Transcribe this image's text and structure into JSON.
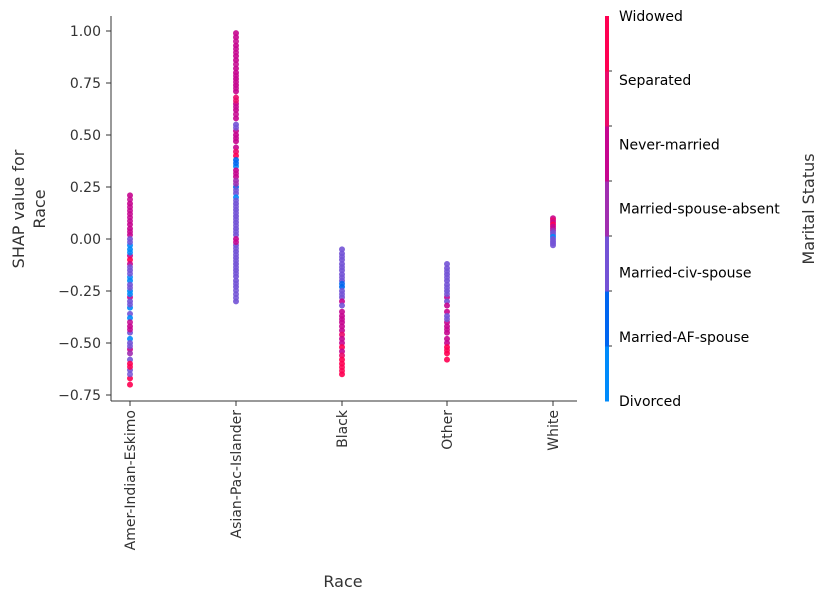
{
  "chart_data": {
    "type": "scatter",
    "xlabel": "Race",
    "ylabel_lines": [
      "SHAP value for",
      "Race"
    ],
    "categories": [
      "Amer-Indian-Eskimo",
      "Asian-Pac-Islander",
      "Black",
      "Other",
      "White"
    ],
    "ylim": [
      -0.78,
      1.06
    ],
    "yticks": [
      1.0,
      0.75,
      0.5,
      0.25,
      0.0,
      -0.25,
      -0.5,
      -0.75
    ],
    "ytick_labels": [
      "1.00",
      "0.75",
      "0.50",
      "0.25",
      "0.00",
      "−0.25",
      "−0.50",
      "−0.75"
    ],
    "grid": false,
    "colorbar": {
      "title": "Marital Status",
      "labels": [
        "Divorced",
        "Married-AF-spouse",
        "Married-civ-spouse",
        "Married-spouse-absent",
        "Never-married",
        "Separated",
        "Widowed"
      ],
      "colors": [
        "#008bfb",
        "#0066f0",
        "#7353d6",
        "#a12eb0",
        "#c6068f",
        "#ea0a6a",
        "#ff0052"
      ]
    },
    "point_format": [
      "shap_value",
      "marital_status_index"
    ],
    "points": {
      "Amer-Indian-Eskimo": [
        [
          0.21,
          4
        ],
        [
          0.17,
          4
        ],
        [
          0.07,
          4
        ],
        [
          0.05,
          4
        ],
        [
          0.02,
          4
        ],
        [
          0.0,
          2
        ],
        [
          -0.03,
          0
        ],
        [
          -0.05,
          0
        ],
        [
          -0.08,
          4
        ],
        [
          -0.1,
          6
        ],
        [
          -0.12,
          4
        ],
        [
          -0.15,
          2
        ],
        [
          -0.2,
          0
        ],
        [
          -0.22,
          2
        ],
        [
          -0.25,
          0
        ],
        [
          -0.28,
          4
        ],
        [
          -0.3,
          2
        ],
        [
          -0.33,
          0
        ],
        [
          -0.36,
          2
        ],
        [
          -0.38,
          0
        ],
        [
          -0.42,
          4
        ],
        [
          -0.45,
          2
        ],
        [
          -0.48,
          0
        ],
        [
          -0.5,
          2
        ],
        [
          -0.53,
          4
        ],
        [
          -0.55,
          3
        ],
        [
          -0.58,
          2
        ],
        [
          -0.6,
          6
        ],
        [
          -0.63,
          2
        ],
        [
          -0.67,
          6
        ],
        [
          -0.7,
          6
        ]
      ],
      "Asian-Pac-Islander": [
        [
          0.99,
          4
        ],
        [
          0.97,
          4
        ],
        [
          0.93,
          4
        ],
        [
          0.88,
          4
        ],
        [
          0.86,
          4
        ],
        [
          0.82,
          4
        ],
        [
          0.8,
          4
        ],
        [
          0.77,
          4
        ],
        [
          0.74,
          4
        ],
        [
          0.71,
          4
        ],
        [
          0.68,
          5
        ],
        [
          0.65,
          4
        ],
        [
          0.62,
          4
        ],
        [
          0.58,
          4
        ],
        [
          0.55,
          2
        ],
        [
          0.52,
          4
        ],
        [
          0.5,
          4
        ],
        [
          0.47,
          4
        ],
        [
          0.44,
          4
        ],
        [
          0.42,
          5
        ],
        [
          0.4,
          6
        ],
        [
          0.38,
          1
        ],
        [
          0.35,
          0
        ],
        [
          0.33,
          4
        ],
        [
          0.3,
          4
        ],
        [
          0.28,
          3
        ],
        [
          0.25,
          1
        ],
        [
          0.22,
          2
        ],
        [
          0.2,
          0
        ],
        [
          0.17,
          2
        ],
        [
          0.14,
          2
        ],
        [
          0.11,
          2
        ],
        [
          0.08,
          2
        ],
        [
          0.05,
          2
        ],
        [
          0.02,
          2
        ],
        [
          0.0,
          4
        ],
        [
          -0.03,
          2
        ],
        [
          -0.06,
          2
        ],
        [
          -0.09,
          2
        ],
        [
          -0.12,
          2
        ],
        [
          -0.15,
          2
        ],
        [
          -0.18,
          2
        ],
        [
          -0.2,
          2
        ],
        [
          -0.23,
          2
        ],
        [
          -0.3,
          2
        ]
      ],
      "Black": [
        [
          -0.05,
          2
        ],
        [
          -0.07,
          2
        ],
        [
          -0.1,
          2
        ],
        [
          -0.12,
          2
        ],
        [
          -0.15,
          2
        ],
        [
          -0.17,
          2
        ],
        [
          -0.2,
          2
        ],
        [
          -0.23,
          1
        ],
        [
          -0.25,
          2
        ],
        [
          -0.28,
          2
        ],
        [
          -0.3,
          4
        ],
        [
          -0.32,
          2
        ],
        [
          -0.35,
          4
        ],
        [
          -0.37,
          4
        ],
        [
          -0.4,
          4
        ],
        [
          -0.42,
          4
        ],
        [
          -0.44,
          4
        ],
        [
          -0.46,
          5
        ],
        [
          -0.48,
          4
        ],
        [
          -0.5,
          4
        ],
        [
          -0.52,
          6
        ],
        [
          -0.54,
          4
        ],
        [
          -0.56,
          5
        ],
        [
          -0.58,
          6
        ],
        [
          -0.6,
          6
        ],
        [
          -0.65,
          6
        ]
      ],
      "Other": [
        [
          -0.12,
          2
        ],
        [
          -0.14,
          2
        ],
        [
          -0.17,
          2
        ],
        [
          -0.2,
          2
        ],
        [
          -0.22,
          2
        ],
        [
          -0.25,
          2
        ],
        [
          -0.28,
          4
        ],
        [
          -0.3,
          2
        ],
        [
          -0.32,
          4
        ],
        [
          -0.35,
          4
        ],
        [
          -0.37,
          2
        ],
        [
          -0.4,
          4
        ],
        [
          -0.42,
          4
        ],
        [
          -0.45,
          4
        ],
        [
          -0.48,
          4
        ],
        [
          -0.5,
          4
        ],
        [
          -0.52,
          6
        ],
        [
          -0.55,
          6
        ],
        [
          -0.58,
          6
        ]
      ],
      "White": [
        [
          0.1,
          4
        ],
        [
          0.09,
          5
        ],
        [
          0.08,
          4
        ],
        [
          0.07,
          6
        ],
        [
          0.06,
          4
        ],
        [
          0.05,
          4
        ],
        [
          0.04,
          3
        ],
        [
          0.03,
          2
        ],
        [
          0.02,
          2
        ],
        [
          0.01,
          0
        ],
        [
          0.0,
          2
        ],
        [
          -0.01,
          2
        ],
        [
          -0.02,
          2
        ],
        [
          -0.03,
          2
        ]
      ]
    }
  }
}
